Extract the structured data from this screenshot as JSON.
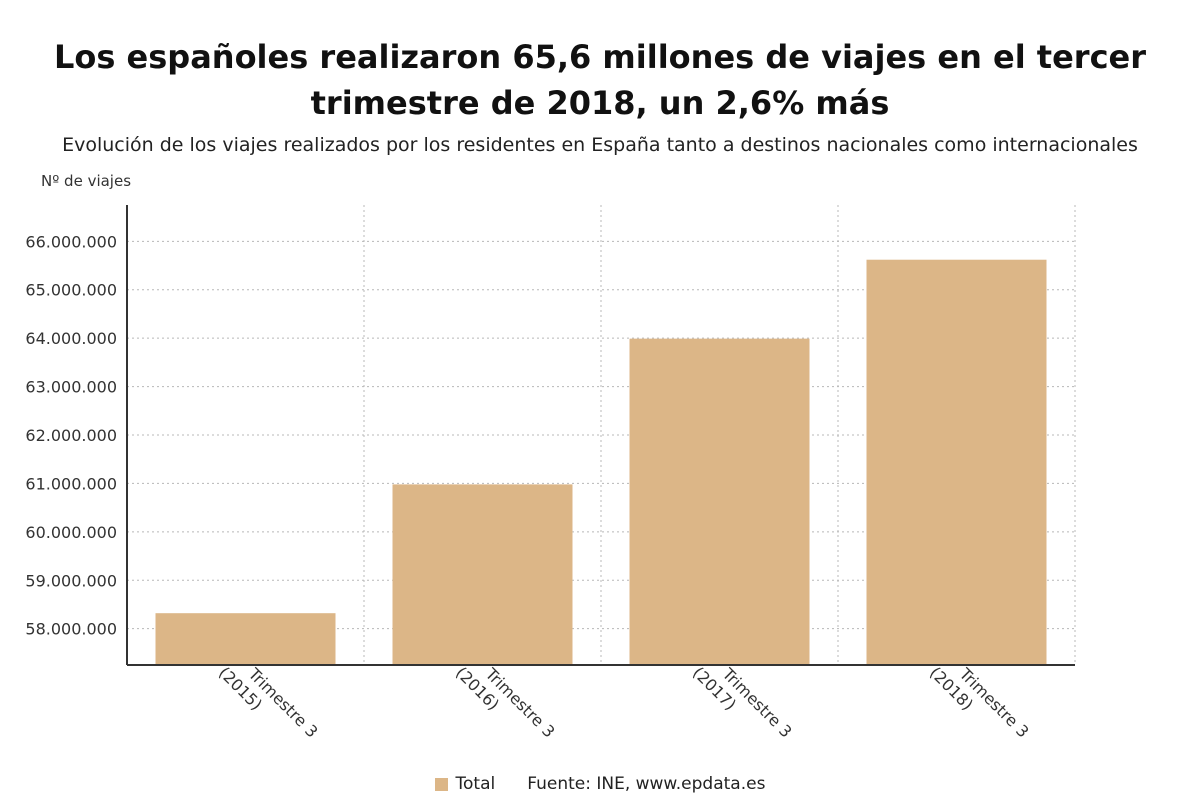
{
  "title": "Los españoles realizaron 65,6 millones de viajes en el tercer trimestre de 2018, un 2,6% más",
  "subtitle": "Evolución de los viajes realizados por los residentes en España tanto a destinos nacionales como internacionales",
  "source": "Fuente: INE, www.epdata.es",
  "colors": {
    "bar": "#dcb687",
    "grid": "#b8b8b8",
    "axis": "#333333"
  },
  "chart_data": {
    "type": "bar",
    "title": "Los españoles realizaron 65,6 millones de viajes en el tercer trimestre de 2018, un 2,6% más",
    "subtitle": "Evolución de los viajes realizados por los residentes en España tanto a destinos nacionales como internacionales",
    "xlabel": "",
    "ylabel": "Nº de viajes",
    "categories": [
      "Trimestre 3 (2015)",
      "Trimestre 3 (2016)",
      "Trimestre 3 (2017)",
      "Trimestre 3 (2018)"
    ],
    "category_lines": [
      [
        "Trimestre 3",
        "(2015)"
      ],
      [
        "Trimestre 3",
        "(2016)"
      ],
      [
        "Trimestre 3",
        "(2017)"
      ],
      [
        "Trimestre 3",
        "(2018)"
      ]
    ],
    "series": [
      {
        "name": "Total",
        "values": [
          58320000,
          60980000,
          63990000,
          65620000
        ]
      }
    ],
    "ylim": [
      57250000,
      66750000
    ],
    "yticks": [
      58000000,
      59000000,
      60000000,
      61000000,
      62000000,
      63000000,
      64000000,
      65000000,
      66000000
    ],
    "ytick_labels": [
      "58.000.000",
      "59.000.000",
      "60.000.000",
      "61.000.000",
      "62.000.000",
      "63.000.000",
      "64.000.000",
      "65.000.000",
      "66.000.000"
    ],
    "grid": true,
    "legend": "bottom"
  }
}
